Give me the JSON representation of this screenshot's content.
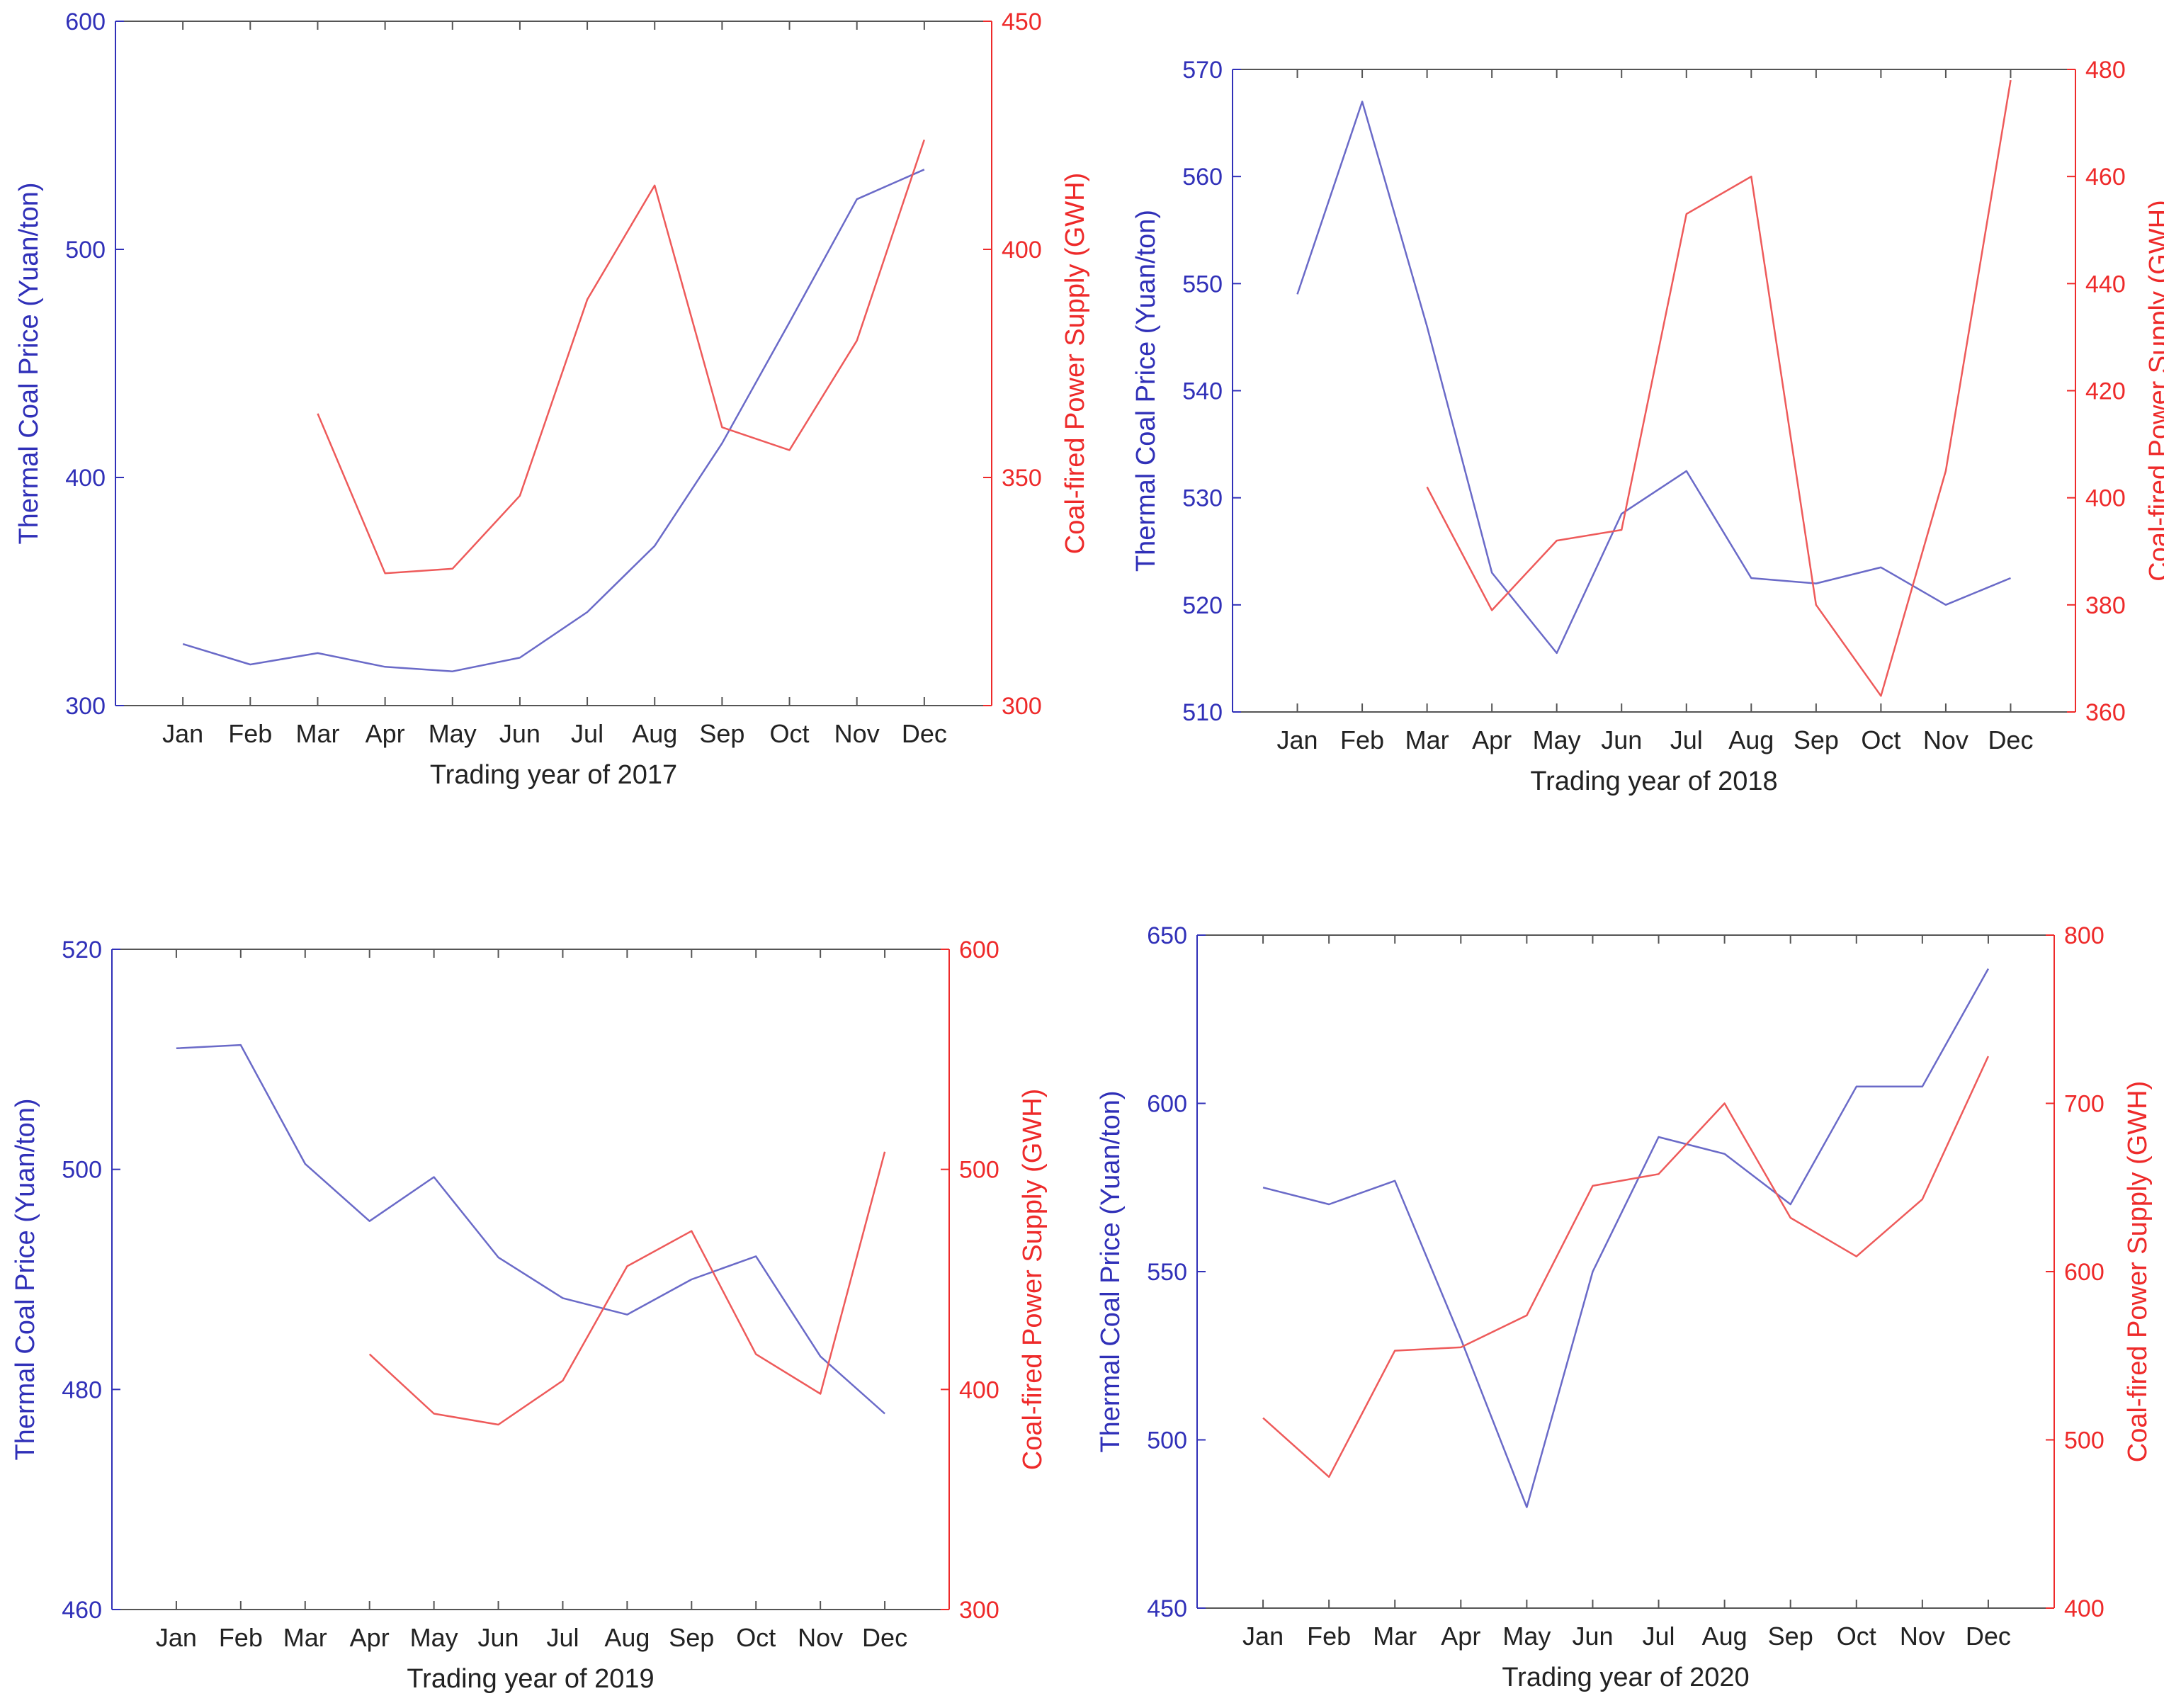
{
  "figure": {
    "months": [
      "Jan",
      "Feb",
      "Mar",
      "Apr",
      "May",
      "Jun",
      "Jul",
      "Aug",
      "Sep",
      "Oct",
      "Nov",
      "Dec"
    ],
    "colors": {
      "left_axis": "#3030b8",
      "right_axis": "#ee2a2a",
      "price_line": "#6a6ac8",
      "supply_line": "#ee5a5a",
      "frame": "#555555"
    }
  },
  "chart_data": [
    {
      "type": "line",
      "title": "",
      "xlabel": "Trading year of 2017",
      "ylabel": "Thermal Coal Price (Yuan/ton)",
      "y2label": "Coal-fired Power Supply (GWH)",
      "categories": [
        "Jan",
        "Feb",
        "Mar",
        "Apr",
        "May",
        "Jun",
        "Jul",
        "Aug",
        "Sep",
        "Oct",
        "Nov",
        "Dec"
      ],
      "ylim": [
        300,
        600
      ],
      "yticks": [
        "300",
        "400",
        "500",
        "600"
      ],
      "y2lim": [
        300,
        450
      ],
      "y2ticks": [
        "300",
        "350",
        "400",
        "450"
      ],
      "series": [
        {
          "name": "Thermal Coal Price",
          "axis": "left",
          "values": [
            327,
            318,
            323,
            317,
            315,
            321,
            341,
            370,
            415,
            468,
            522,
            535
          ]
        },
        {
          "name": "Coal-fired Power Supply",
          "axis": "right",
          "values": [
            null,
            null,
            364,
            329,
            330,
            346,
            389,
            414,
            361,
            356,
            380,
            424
          ]
        }
      ]
    },
    {
      "type": "line",
      "title": "",
      "xlabel": "Trading year of 2018",
      "ylabel": "Thermal Coal Price (Yuan/ton)",
      "y2label": "Coal-fired Power Supply (GWH)",
      "categories": [
        "Jan",
        "Feb",
        "Mar",
        "Apr",
        "May",
        "Jun",
        "Jul",
        "Aug",
        "Sep",
        "Oct",
        "Nov",
        "Dec"
      ],
      "ylim": [
        510,
        570
      ],
      "yticks": [
        "510",
        "520",
        "530",
        "540",
        "550",
        "560",
        "570"
      ],
      "y2lim": [
        360,
        480
      ],
      "y2ticks": [
        "360",
        "380",
        "400",
        "420",
        "440",
        "460",
        "480"
      ],
      "series": [
        {
          "name": "Thermal Coal Price",
          "axis": "left",
          "values": [
            549,
            567,
            546,
            523,
            515.5,
            528.5,
            532.5,
            522.5,
            522,
            523.5,
            520,
            522.5
          ]
        },
        {
          "name": "Coal-fired Power Supply",
          "axis": "right",
          "values": [
            null,
            null,
            402,
            379,
            392,
            394,
            453,
            460,
            380,
            363,
            405,
            478
          ]
        }
      ]
    },
    {
      "type": "line",
      "title": "",
      "xlabel": "Trading year of 2019",
      "ylabel": "Thermal Coal Price (Yuan/ton)",
      "y2label": "Coal-fired Power Supply (GWH)",
      "categories": [
        "Jan",
        "Feb",
        "Mar",
        "Apr",
        "May",
        "Jun",
        "Jul",
        "Aug",
        "Sep",
        "Oct",
        "Nov",
        "Dec"
      ],
      "ylim": [
        460,
        520
      ],
      "yticks": [
        "460",
        "480",
        "500",
        "520"
      ],
      "y2lim": [
        300,
        600
      ],
      "y2ticks": [
        "300",
        "400",
        "500",
        "600"
      ],
      "series": [
        {
          "name": "Thermal Coal Price",
          "axis": "left",
          "values": [
            511,
            511.3,
            500.5,
            495.3,
            499.3,
            492,
            488.3,
            486.8,
            490,
            492.1,
            483,
            477.8
          ]
        },
        {
          "name": "Coal-fired Power Supply",
          "axis": "right",
          "values": [
            null,
            null,
            null,
            416,
            389,
            384,
            404,
            456,
            472,
            416,
            398,
            508
          ]
        }
      ]
    },
    {
      "type": "line",
      "title": "",
      "xlabel": "Trading year of 2020",
      "ylabel": "Thermal Coal Price (Yuan/ton)",
      "y2label": "Coal-fired Power Supply (GWH)",
      "categories": [
        "Jan",
        "Feb",
        "Mar",
        "Apr",
        "May",
        "Jun",
        "Jul",
        "Aug",
        "Sep",
        "Oct",
        "Nov",
        "Dec"
      ],
      "ylim": [
        450,
        650
      ],
      "yticks": [
        "450",
        "500",
        "550",
        "600",
        "650"
      ],
      "y2lim": [
        400,
        800
      ],
      "y2ticks": [
        "400",
        "500",
        "600",
        "700",
        "800"
      ],
      "series": [
        {
          "name": "Thermal Coal Price",
          "axis": "left",
          "values": [
            575,
            570,
            577,
            530,
            480,
            550,
            590,
            585,
            570,
            605,
            605,
            640
          ]
        },
        {
          "name": "Coal-fired Power Supply",
          "axis": "right",
          "values": [
            513,
            478,
            553,
            555,
            574,
            651,
            658,
            700,
            632,
            609,
            643,
            728
          ]
        }
      ]
    }
  ]
}
